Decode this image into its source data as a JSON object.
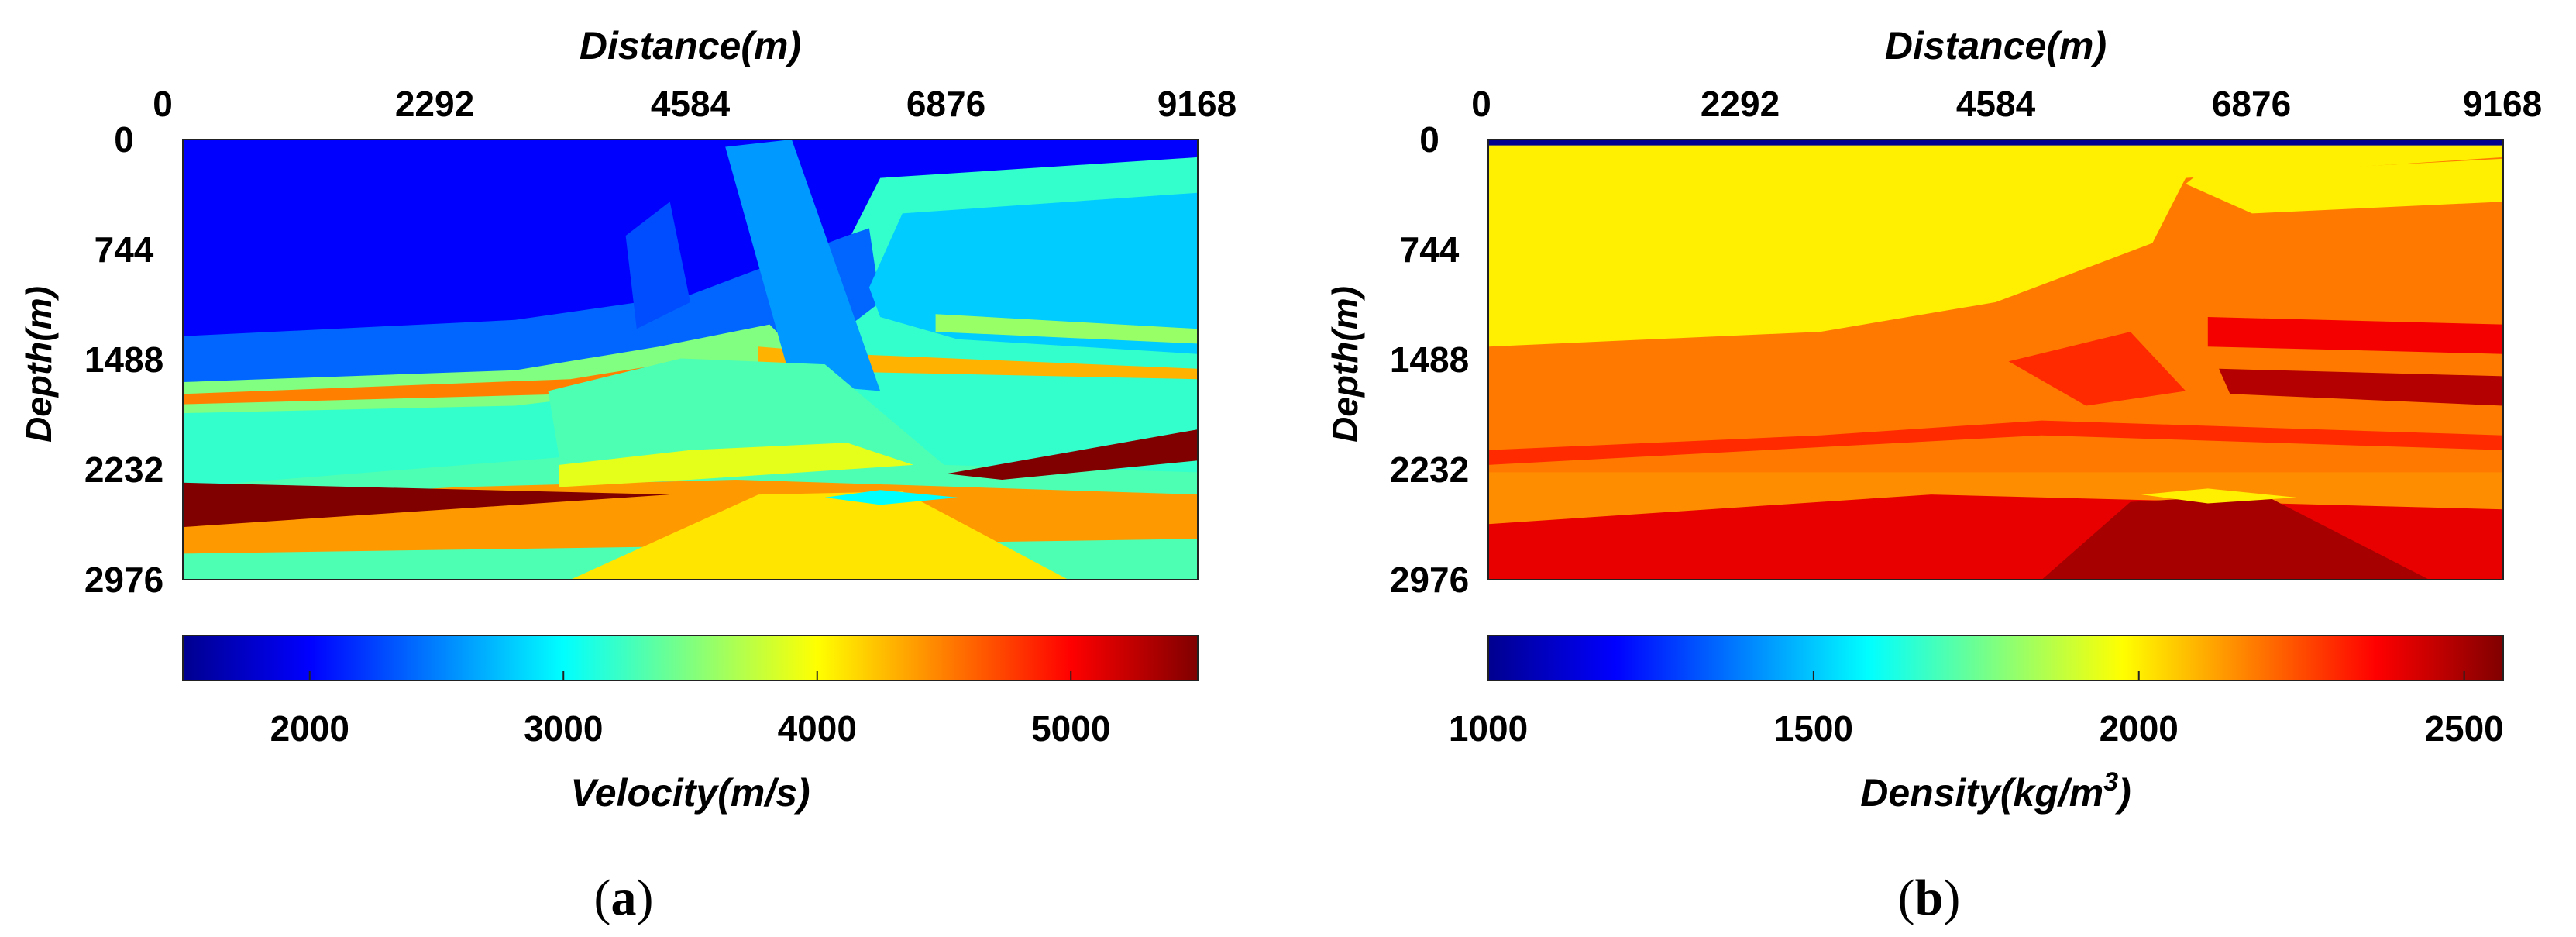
{
  "chart_data": [
    {
      "type": "heatmap",
      "panel_label": "(a)",
      "panel_letter": "a",
      "x_title": "Distance(m)",
      "y_title": "Depth(m)",
      "x_ticks": [
        0,
        2292,
        4584,
        6876,
        9168
      ],
      "y_ticks": [
        0,
        744,
        1488,
        2232,
        2976
      ],
      "x_range": [
        0,
        9168
      ],
      "y_range": [
        0,
        2976
      ],
      "colorbar": {
        "label": "Velocity(m/s)",
        "range": [
          1500,
          5500
        ],
        "ticks": [
          2000,
          3000,
          4000,
          5000
        ],
        "colormap": "jet"
      },
      "background_value": 3200,
      "regions": [
        {
          "value": 2000,
          "poly": [
            [
              0,
              0
            ],
            [
              9168,
              0
            ],
            [
              9168,
              120
            ],
            [
              6300,
              260
            ],
            [
              6000,
              700
            ],
            [
              4584,
              1100
            ],
            [
              3000,
              1300
            ],
            [
              0,
              1400
            ]
          ]
        },
        {
          "value": 2400,
          "poly": [
            [
              0,
              1330
            ],
            [
              3000,
              1220
            ],
            [
              4584,
              1050
            ],
            [
              6000,
              650
            ],
            [
              6200,
              600
            ],
            [
              6300,
              1100
            ],
            [
              5600,
              1500
            ],
            [
              3500,
              1700
            ],
            [
              0,
              1700
            ]
          ]
        },
        {
          "value": 3500,
          "poly": [
            [
              0,
              1640
            ],
            [
              3000,
              1560
            ],
            [
              4300,
              1400
            ],
            [
              5300,
              1250
            ],
            [
              5600,
              1480
            ],
            [
              4800,
              1640
            ],
            [
              3000,
              1800
            ],
            [
              0,
              1850
            ]
          ]
        },
        {
          "value": 4500,
          "poly": [
            [
              0,
              1720
            ],
            [
              3500,
              1620
            ],
            [
              4500,
              1500
            ],
            [
              4700,
              1560
            ],
            [
              3500,
              1720
            ],
            [
              0,
              1790
            ]
          ]
        },
        {
          "value": 4300,
          "poly": [
            [
              5200,
              1400
            ],
            [
              6000,
              1450
            ],
            [
              9168,
              1550
            ],
            [
              9168,
              1620
            ],
            [
              6000,
              1570
            ],
            [
              5200,
              1520
            ]
          ]
        },
        {
          "value": 2800,
          "poly": [
            [
              6200,
              1000
            ],
            [
              6500,
              500
            ],
            [
              9168,
              360
            ],
            [
              9168,
              1450
            ],
            [
              7000,
              1350
            ],
            [
              6300,
              1200
            ]
          ]
        },
        {
          "value": 3600,
          "poly": [
            [
              6800,
              1180
            ],
            [
              9168,
              1280
            ],
            [
              9168,
              1380
            ],
            [
              6800,
              1300
            ]
          ]
        },
        {
          "value": 2300,
          "poly": [
            [
              4000,
              650
            ],
            [
              4400,
              420
            ],
            [
              4584,
              1100
            ],
            [
              4100,
              1280
            ]
          ]
        },
        {
          "value": 2600,
          "poly": [
            [
              4900,
              50
            ],
            [
              5500,
              0
            ],
            [
              6300,
              1700
            ],
            [
              5500,
              1650
            ]
          ]
        },
        {
          "value": 3300,
          "poly": [
            [
              3300,
              1700
            ],
            [
              4500,
              1480
            ],
            [
              5800,
              1520
            ],
            [
              6876,
              2200
            ],
            [
              9168,
              2250
            ],
            [
              9168,
              2976
            ],
            [
              0,
              2976
            ],
            [
              0,
              2350
            ],
            [
              3400,
              2150
            ]
          ]
        },
        {
          "value": 4400,
          "poly": [
            [
              0,
              2450
            ],
            [
              2500,
              2350
            ],
            [
              5000,
              2300
            ],
            [
              9168,
              2400
            ],
            [
              9168,
              2700
            ],
            [
              0,
              2800
            ]
          ]
        },
        {
          "value": 4100,
          "poly": [
            [
              3500,
              2976
            ],
            [
              5200,
              2400
            ],
            [
              6500,
              2380
            ],
            [
              8000,
              2976
            ]
          ]
        },
        {
          "value": 3900,
          "poly": [
            [
              3400,
              2200
            ],
            [
              4584,
              2100
            ],
            [
              6000,
              2050
            ],
            [
              6600,
              2200
            ],
            [
              4584,
              2300
            ],
            [
              3400,
              2350
            ]
          ]
        },
        {
          "value": 3000,
          "poly": [
            [
              5800,
              2420
            ],
            [
              6300,
              2370
            ],
            [
              7000,
              2420
            ],
            [
              6300,
              2470
            ]
          ]
        },
        {
          "value": 5600,
          "poly": [
            [
              0,
              2320
            ],
            [
              4400,
              2400
            ],
            [
              0,
              2620
            ]
          ]
        },
        {
          "value": 5600,
          "poly": [
            [
              6900,
              2260
            ],
            [
              9168,
              1960
            ],
            [
              9168,
              2170
            ],
            [
              7400,
              2300
            ]
          ]
        }
      ]
    },
    {
      "type": "heatmap",
      "panel_label": "(b)",
      "panel_letter": "b",
      "x_title": "Distance(m)",
      "y_title": "Depth(m)",
      "x_ticks": [
        0,
        2292,
        4584,
        6876,
        9168
      ],
      "y_ticks": [
        0,
        744,
        1488,
        2232,
        2976
      ],
      "x_range": [
        0,
        9168
      ],
      "y_range": [
        0,
        2976
      ],
      "colorbar": {
        "label": "Density(kg/m",
        "label_superscript": "3",
        "label_suffix": ")",
        "range": [
          1000,
          2560
        ],
        "ticks": [
          1000,
          1500,
          2000,
          2500
        ],
        "colormap": "jet"
      },
      "background_value": 2180,
      "regions": [
        {
          "value": 2000,
          "poly": [
            [
              0,
              0
            ],
            [
              9168,
              0
            ],
            [
              9168,
              120
            ],
            [
              6300,
              260
            ],
            [
              6000,
              700
            ],
            [
              4584,
              1100
            ],
            [
              3000,
              1300
            ],
            [
              0,
              1400
            ]
          ]
        },
        {
          "value": 1000,
          "poly": [
            [
              0,
              0
            ],
            [
              9168,
              0
            ],
            [
              9168,
              40
            ],
            [
              0,
              40
            ]
          ]
        },
        {
          "value": 2000,
          "poly": [
            [
              6300,
              300
            ],
            [
              6900,
              500
            ],
            [
              9168,
              420
            ],
            [
              9168,
              130
            ],
            [
              6400,
              240
            ]
          ]
        },
        {
          "value": 2300,
          "poly": [
            [
              0,
              2100
            ],
            [
              3000,
              2000
            ],
            [
              5000,
              1900
            ],
            [
              9168,
              2000
            ],
            [
              9168,
              2100
            ],
            [
              5000,
              2000
            ],
            [
              0,
              2200
            ]
          ]
        },
        {
          "value": 2150,
          "poly": [
            [
              0,
              2250
            ],
            [
              9168,
              2250
            ],
            [
              9168,
              2976
            ],
            [
              0,
              2976
            ]
          ]
        },
        {
          "value": 2400,
          "poly": [
            [
              0,
              2600
            ],
            [
              4000,
              2400
            ],
            [
              9168,
              2500
            ],
            [
              9168,
              2976
            ],
            [
              0,
              2976
            ]
          ]
        },
        {
          "value": 2500,
          "poly": [
            [
              5000,
              2976
            ],
            [
              5800,
              2450
            ],
            [
              7000,
              2400
            ],
            [
              8500,
              2976
            ]
          ]
        },
        {
          "value": 2480,
          "poly": [
            [
              6600,
              1550
            ],
            [
              9168,
              1600
            ],
            [
              9168,
              1800
            ],
            [
              6700,
              1720
            ]
          ]
        },
        {
          "value": 2380,
          "poly": [
            [
              6500,
              1200
            ],
            [
              9168,
              1250
            ],
            [
              9168,
              1450
            ],
            [
              6500,
              1400
            ]
          ]
        },
        {
          "value": 2000,
          "poly": [
            [
              5900,
              2400
            ],
            [
              6500,
              2360
            ],
            [
              7300,
              2420
            ],
            [
              6500,
              2460
            ]
          ]
        },
        {
          "value": 2300,
          "poly": [
            [
              4700,
              1500
            ],
            [
              5800,
              1300
            ],
            [
              6300,
              1700
            ],
            [
              5400,
              1800
            ]
          ]
        }
      ]
    }
  ]
}
